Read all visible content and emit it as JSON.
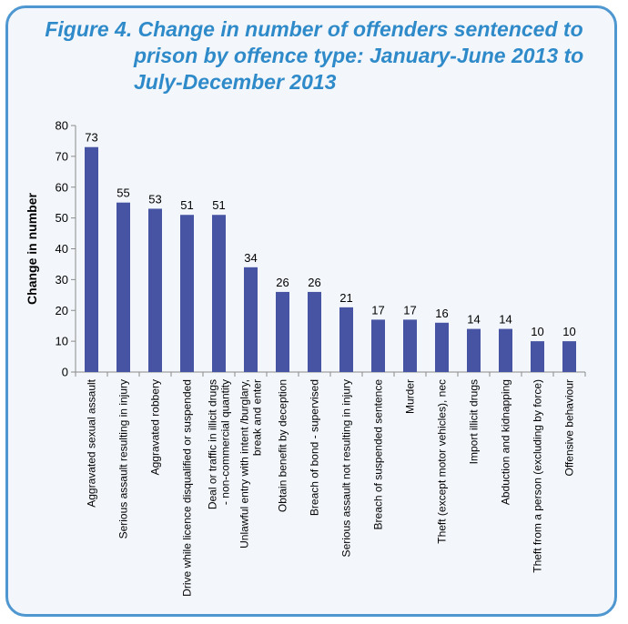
{
  "chart_data": {
    "type": "bar",
    "title": "Figure 4. Change in number of offenders sentenced to prison by offence type: January-June 2013 to July-December 2013",
    "title_lines": [
      "Figure 4. Change in number of offenders sentenced to",
      "prison by offence type: January-June 2013 to",
      "July-December 2013"
    ],
    "xlabel": "",
    "ylabel": "Change in number",
    "ylim": [
      0,
      80
    ],
    "yticks": [
      0,
      10,
      20,
      30,
      40,
      50,
      60,
      70,
      80
    ],
    "grid": false,
    "bar_color": "#4654a3",
    "title_color": "#2f8ac9",
    "border_color": "#4f97d0",
    "categories": [
      "Aggravated sexual assault",
      "Serious assault resulting in injury",
      "Aggravated robbery",
      "Drive while licence disqualified or suspended",
      "Deal or traffic in illicit drugs - non-commercial quantity",
      "Unlawful entry with intent /burglary, break and enter",
      "Obtain benefit by deception",
      "Breach of bond - supervised",
      "Serious assault not resulting in injury",
      "Breach of suspended sentence",
      "Murder",
      "Theft (except motor vehicles), nec",
      "Import illicit drugs",
      "Abduction and kidnapping",
      "Theft from a person (excluding by force)",
      "Offensive behaviour"
    ],
    "category_lines": [
      [
        "Aggravated sexual assault"
      ],
      [
        "Serious assault resulting in injury"
      ],
      [
        "Aggravated robbery"
      ],
      [
        "Drive while licence disqualified or suspended"
      ],
      [
        "Deal or traffic in illicit drugs",
        "- non-commercial quantity"
      ],
      [
        "Unlawful entry with intent /burglary,",
        "break and enter"
      ],
      [
        "Obtain benefit by deception"
      ],
      [
        "Breach of bond - supervised"
      ],
      [
        "Serious assault not resulting in injury"
      ],
      [
        "Breach of suspended sentence"
      ],
      [
        "Murder"
      ],
      [
        "Theft (except motor vehicles), nec"
      ],
      [
        "Import illicit drugs"
      ],
      [
        "Abduction and kidnapping"
      ],
      [
        "Theft from a person (excluding by force)"
      ],
      [
        "Offensive behaviour"
      ]
    ],
    "values": [
      73,
      55,
      53,
      51,
      51,
      34,
      26,
      26,
      21,
      17,
      17,
      16,
      14,
      14,
      10,
      10
    ]
  }
}
